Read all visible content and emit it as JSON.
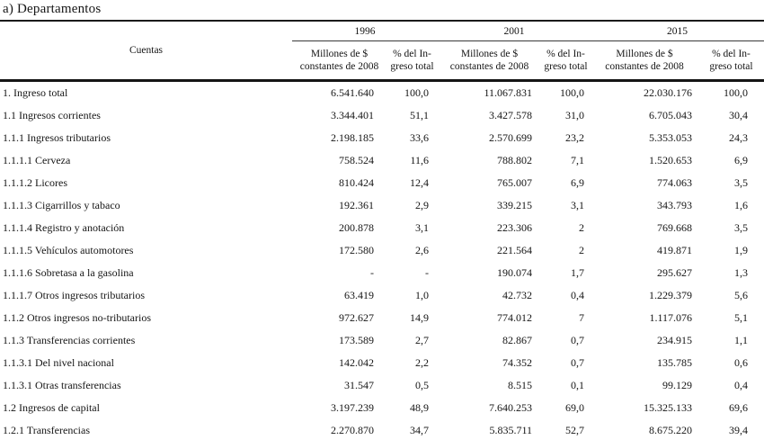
{
  "page_title": "a) Departamentos",
  "table": {
    "cuentas_header": "Cuentas",
    "years": [
      "1996",
      "2001",
      "2015"
    ],
    "value_subheader": {
      "line1": "Millones de $",
      "line2": "constantes de 2008"
    },
    "pct_subheader": {
      "line1": "% del In-",
      "line2": "greso total"
    },
    "rows": [
      {
        "cuenta": "1. Ingreso total",
        "v1996": "6.541.640",
        "p1996": "100,0",
        "v2001": "11.067.831",
        "p2001": "100,0",
        "v2015": "22.030.176",
        "p2015": "100,0"
      },
      {
        "cuenta": "1.1 Ingresos corrientes",
        "v1996": "3.344.401",
        "p1996": "51,1",
        "v2001": "3.427.578",
        "p2001": "31,0",
        "v2015": "6.705.043",
        "p2015": "30,4"
      },
      {
        "cuenta": "1.1.1 Ingresos tributarios",
        "v1996": "2.198.185",
        "p1996": "33,6",
        "v2001": "2.570.699",
        "p2001": "23,2",
        "v2015": "5.353.053",
        "p2015": "24,3"
      },
      {
        "cuenta": "1.1.1.1 Cerveza",
        "v1996": "758.524",
        "p1996": "11,6",
        "v2001": "788.802",
        "p2001": "7,1",
        "v2015": "1.520.653",
        "p2015": "6,9"
      },
      {
        "cuenta": "1.1.1.2 Licores",
        "v1996": "810.424",
        "p1996": "12,4",
        "v2001": "765.007",
        "p2001": "6,9",
        "v2015": "774.063",
        "p2015": "3,5"
      },
      {
        "cuenta": "1.1.1.3 Cigarrillos y tabaco",
        "v1996": "192.361",
        "p1996": "2,9",
        "v2001": "339.215",
        "p2001": "3,1",
        "v2015": "343.793",
        "p2015": "1,6"
      },
      {
        "cuenta": "1.1.1.4 Registro y anotación",
        "v1996": "200.878",
        "p1996": "3,1",
        "v2001": "223.306",
        "p2001": "2",
        "v2015": "769.668",
        "p2015": "3,5"
      },
      {
        "cuenta": "1.1.1.5 Vehículos automotores",
        "v1996": "172.580",
        "p1996": "2,6",
        "v2001": "221.564",
        "p2001": "2",
        "v2015": "419.871",
        "p2015": "1,9"
      },
      {
        "cuenta": "1.1.1.6 Sobretasa a la gasolina",
        "v1996": "-",
        "p1996": "-",
        "v2001": "190.074",
        "p2001": "1,7",
        "v2015": "295.627",
        "p2015": "1,3"
      },
      {
        "cuenta": "1.1.1.7 Otros ingresos tributarios",
        "v1996": "63.419",
        "p1996": "1,0",
        "v2001": "42.732",
        "p2001": "0,4",
        "v2015": "1.229.379",
        "p2015": "5,6"
      },
      {
        "cuenta": "1.1.2 Otros ingresos no-tributarios",
        "v1996": "972.627",
        "p1996": "14,9",
        "v2001": "774.012",
        "p2001": "7",
        "v2015": "1.117.076",
        "p2015": "5,1"
      },
      {
        "cuenta": "1.1.3 Transferencias corrientes",
        "v1996": "173.589",
        "p1996": "2,7",
        "v2001": "82.867",
        "p2001": "0,7",
        "v2015": "234.915",
        "p2015": "1,1"
      },
      {
        "cuenta": "1.1.3.1 Del nivel nacional",
        "v1996": "142.042",
        "p1996": "2,2",
        "v2001": "74.352",
        "p2001": "0,7",
        "v2015": "135.785",
        "p2015": "0,6"
      },
      {
        "cuenta": "1.1.3.1 Otras transferencias",
        "v1996": "31.547",
        "p1996": "0,5",
        "v2001": "8.515",
        "p2001": "0,1",
        "v2015": "99.129",
        "p2015": "0,4"
      },
      {
        "cuenta": "1.2 Ingresos de capital",
        "v1996": "3.197.239",
        "p1996": "48,9",
        "v2001": "7.640.253",
        "p2001": "69,0",
        "v2015": "15.325.133",
        "p2015": "69,6"
      },
      {
        "cuenta": "1.2.1 Transferencias",
        "v1996": "2.270.870",
        "p1996": "34,7",
        "v2001": "5.835.711",
        "p2001": "52,7",
        "v2015": "8.675.220",
        "p2015": "39,4"
      }
    ]
  }
}
